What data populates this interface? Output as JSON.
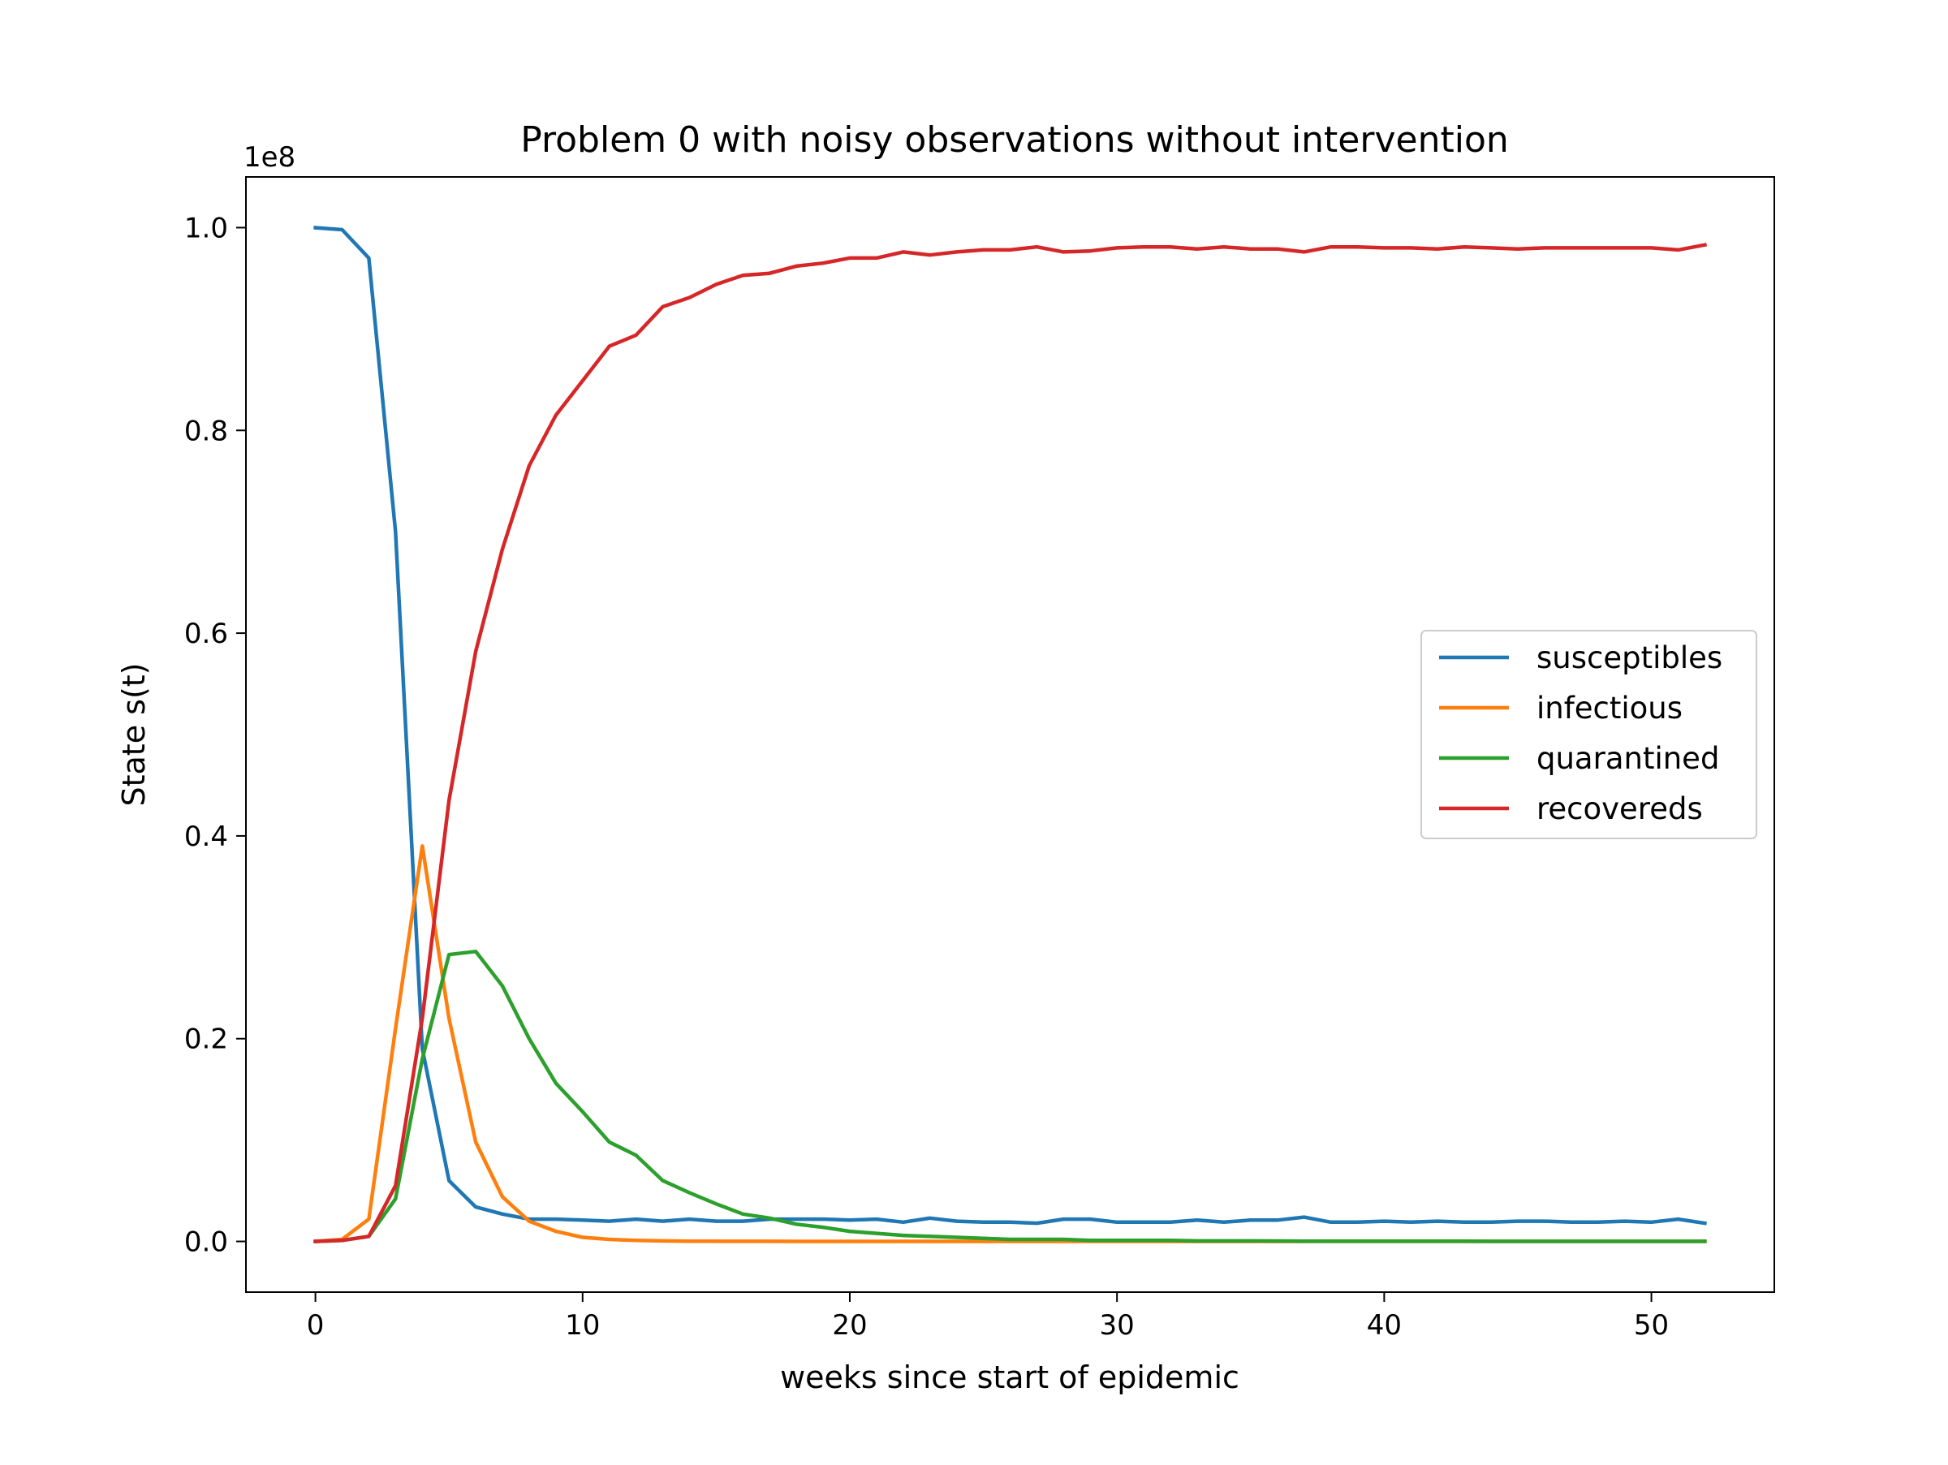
{
  "chart_data": {
    "type": "line",
    "title": "Problem 0 with noisy observations without intervention",
    "xlabel": "weeks since start of epidemic",
    "ylabel": "State s(t)",
    "y_offset_label": "1e8",
    "xlim": [
      -2.6,
      54.6
    ],
    "ylim": [
      -0.05,
      1.05
    ],
    "xticks": [
      0,
      10,
      20,
      30,
      40,
      50
    ],
    "xtick_labels": [
      "0",
      "10",
      "20",
      "30",
      "40",
      "50"
    ],
    "yticks": [
      0.0,
      0.2,
      0.4,
      0.6,
      0.8,
      1.0
    ],
    "ytick_labels": [
      "0.0",
      "0.2",
      "0.4",
      "0.6",
      "0.8",
      "1.0"
    ],
    "grid": false,
    "legend_position": "center-right",
    "x": [
      0,
      1,
      2,
      3,
      4,
      5,
      6,
      7,
      8,
      9,
      10,
      11,
      12,
      13,
      14,
      15,
      16,
      17,
      18,
      19,
      20,
      21,
      22,
      23,
      24,
      25,
      26,
      27,
      28,
      29,
      30,
      31,
      32,
      33,
      34,
      35,
      36,
      37,
      38,
      39,
      40,
      41,
      42,
      43,
      44,
      45,
      46,
      47,
      48,
      49,
      50,
      51,
      52
    ],
    "series": [
      {
        "name": "susceptibles",
        "color": "#1f77b4",
        "values": [
          1.0,
          0.998,
          0.97,
          0.7,
          0.19,
          0.06,
          0.034,
          0.027,
          0.022,
          0.022,
          0.021,
          0.02,
          0.022,
          0.02,
          0.022,
          0.02,
          0.02,
          0.022,
          0.022,
          0.022,
          0.021,
          0.022,
          0.019,
          0.023,
          0.02,
          0.019,
          0.019,
          0.018,
          0.022,
          0.022,
          0.019,
          0.019,
          0.019,
          0.021,
          0.019,
          0.021,
          0.021,
          0.024,
          0.019,
          0.019,
          0.02,
          0.019,
          0.02,
          0.019,
          0.019,
          0.02,
          0.02,
          0.019,
          0.019,
          0.02,
          0.019,
          0.022,
          0.018
        ]
      },
      {
        "name": "infectious",
        "color": "#ff7f0e",
        "values": [
          0.0,
          0.002,
          0.022,
          0.21,
          0.39,
          0.22,
          0.098,
          0.044,
          0.02,
          0.01,
          0.004,
          0.002,
          0.001,
          0.0005,
          0.0003,
          0.0002,
          0.0001,
          0.0001,
          0.0,
          0.0,
          0.0,
          0.0,
          0.0,
          0.0,
          0.0,
          0.0,
          0.0,
          0.0,
          0.0,
          0.0,
          0.0,
          0.0,
          0.0,
          0.0,
          0.0,
          0.0,
          0.0,
          0.0,
          0.0,
          0.0,
          0.0,
          0.0,
          0.0,
          0.0,
          0.0,
          0.0,
          0.0,
          0.0,
          0.0,
          0.0,
          0.0,
          0.0,
          0.0
        ]
      },
      {
        "name": "quarantined",
        "color": "#2ca02c",
        "values": [
          0.0,
          0.001,
          0.005,
          0.042,
          0.18,
          0.283,
          0.286,
          0.252,
          0.2,
          0.156,
          0.128,
          0.098,
          0.085,
          0.06,
          0.048,
          0.037,
          0.027,
          0.023,
          0.017,
          0.014,
          0.01,
          0.008,
          0.006,
          0.005,
          0.004,
          0.003,
          0.002,
          0.002,
          0.002,
          0.001,
          0.001,
          0.001,
          0.001,
          0.0005,
          0.0005,
          0.0005,
          0.0004,
          0.0003,
          0.0003,
          0.0003,
          0.0002,
          0.0002,
          0.0002,
          0.0002,
          0.0001,
          0.0001,
          0.0001,
          0.0001,
          0.0001,
          0.0001,
          0.0001,
          0.0001,
          0.0001
        ]
      },
      {
        "name": "recovereds",
        "color": "#d62728",
        "values": [
          0.0,
          0.001,
          0.005,
          0.055,
          0.22,
          0.435,
          0.582,
          0.683,
          0.765,
          0.815,
          0.849,
          0.883,
          0.894,
          0.922,
          0.931,
          0.944,
          0.953,
          0.955,
          0.962,
          0.965,
          0.97,
          0.97,
          0.976,
          0.973,
          0.976,
          0.978,
          0.978,
          0.981,
          0.976,
          0.977,
          0.98,
          0.981,
          0.981,
          0.979,
          0.981,
          0.979,
          0.979,
          0.976,
          0.981,
          0.981,
          0.98,
          0.98,
          0.979,
          0.981,
          0.98,
          0.979,
          0.98,
          0.98,
          0.98,
          0.98,
          0.98,
          0.978,
          0.983
        ]
      }
    ]
  }
}
